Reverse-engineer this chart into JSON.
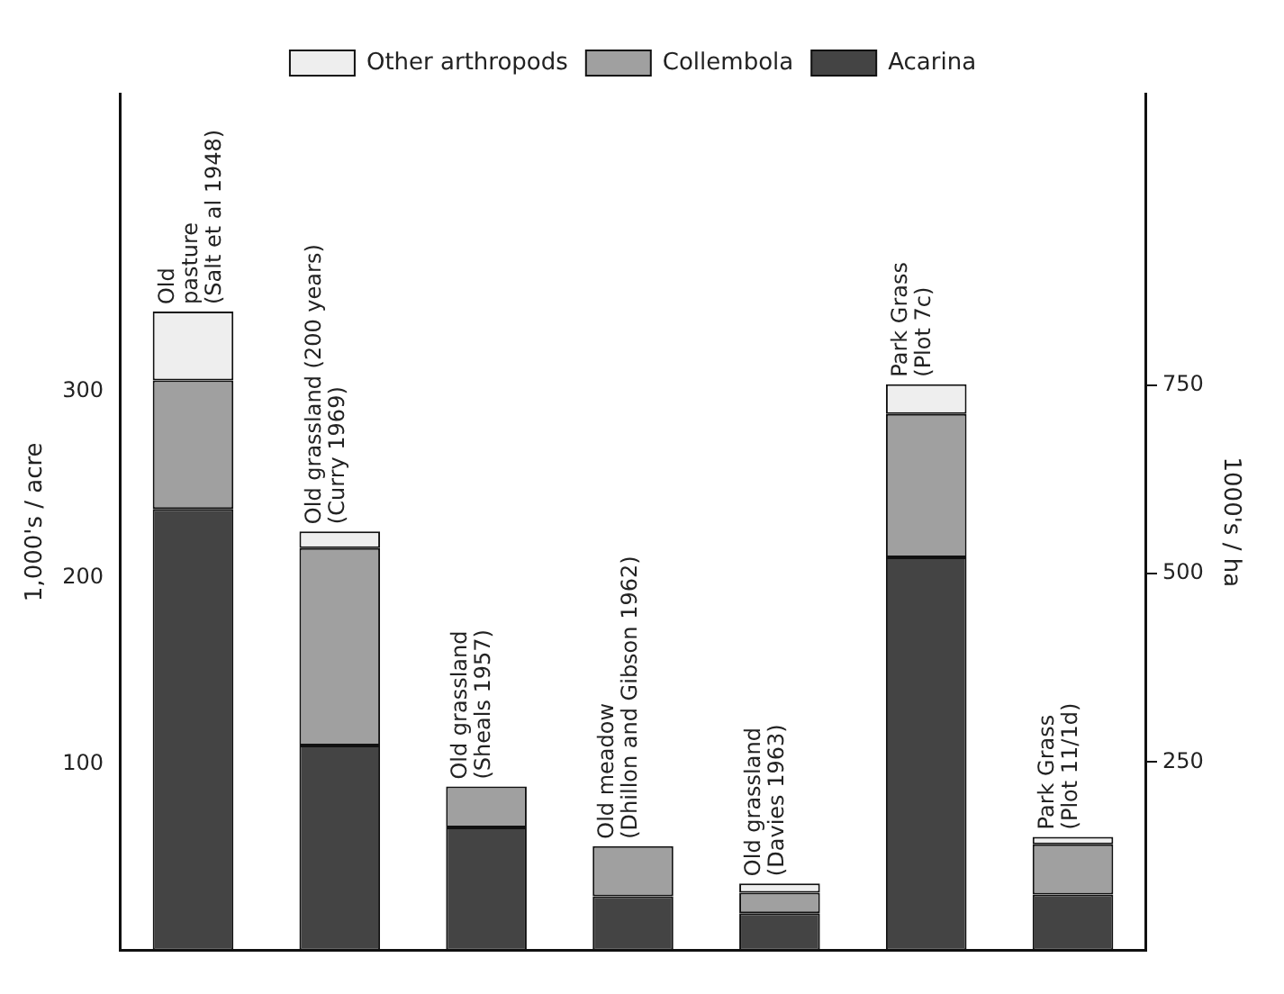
{
  "chart_data": {
    "type": "bar",
    "stacked": true,
    "ylabel": "1,000's / acre",
    "y2label": "1000's / ha",
    "categories": [
      "Old\npasture\n(Salt et al 1948)",
      "Old grassland (200 years)\n(Curry 1969)",
      "Old grassland\n(Sheals 1957)",
      "Old meadow\n(Dhillon and Gibson 1962)",
      "Old grassland\n(Davies 1963)",
      "Park Grass\n(Plot 7c)",
      "Park Grass\n(Plot 11/1d)"
    ],
    "series": [
      {
        "name": "Acarina",
        "color": "#444444",
        "values": [
          237,
          110,
          66,
          29,
          20,
          211,
          30
        ]
      },
      {
        "name": "Collembola",
        "color": "#a0a0a0",
        "values": [
          69,
          106,
          22,
          27,
          11,
          77,
          27
        ]
      },
      {
        "name": "Other arthropods",
        "color": "#eeeeee",
        "values": [
          37,
          9,
          null,
          null,
          5,
          16,
          4
        ]
      }
    ],
    "ylim": [
      0,
      460
    ],
    "yticks": [
      100,
      200,
      300
    ],
    "y2lim": [
      0,
      1137
    ],
    "y2ticks": [
      250,
      500,
      750
    ],
    "legend": "top",
    "grid": false
  }
}
